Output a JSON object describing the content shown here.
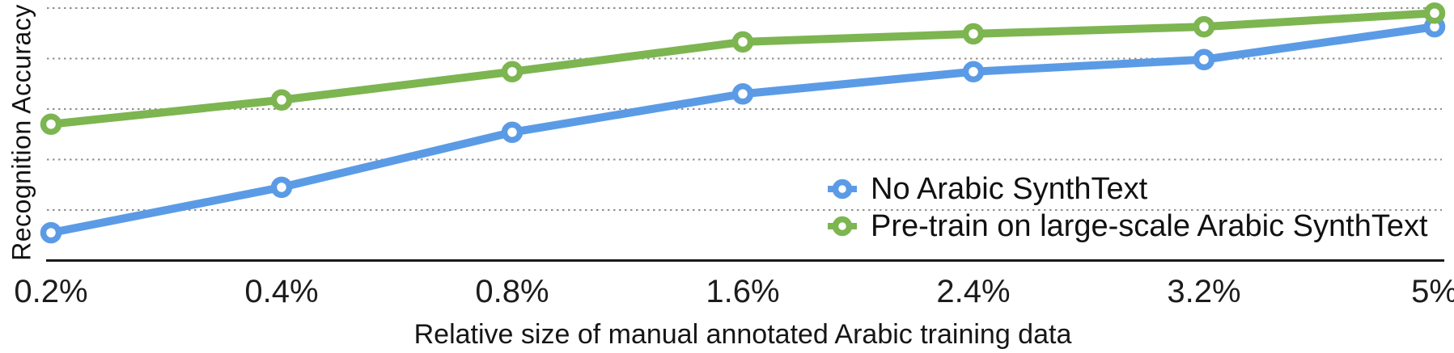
{
  "chart_data": {
    "type": "line",
    "title": "",
    "xlabel": "Relative size of manual annotated Arabic training data",
    "ylabel": "Recognition Accuracy",
    "categories": [
      "0.2%",
      "0.4%",
      "0.8%",
      "1.6%",
      "2.4%",
      "3.2%",
      "5%"
    ],
    "grid": "horizontal-dotted",
    "gridline_color": "#8f8f8f",
    "axis_color": "#1a1a1a",
    "legend_position": "center-right",
    "y_axis": {
      "numeric_labels_visible": false,
      "gridline_count": 5,
      "units_note": "y values estimated in gridline units above the baseline axis (no numeric ticks shown)",
      "ylim_units": [
        0,
        5
      ]
    },
    "series": [
      {
        "name": "No Arabic SynthText",
        "color": "#5b9be6",
        "marker": "open-circle",
        "values_gridline_units": [
          0.55,
          1.45,
          2.54,
          3.3,
          3.74,
          3.98,
          4.63
        ]
      },
      {
        "name": "Pre-train on large-scale Arabic SynthText",
        "color": "#7db551",
        "marker": "open-circle",
        "values_gridline_units": [
          2.7,
          3.18,
          3.74,
          4.33,
          4.49,
          4.63,
          4.9
        ]
      }
    ]
  }
}
